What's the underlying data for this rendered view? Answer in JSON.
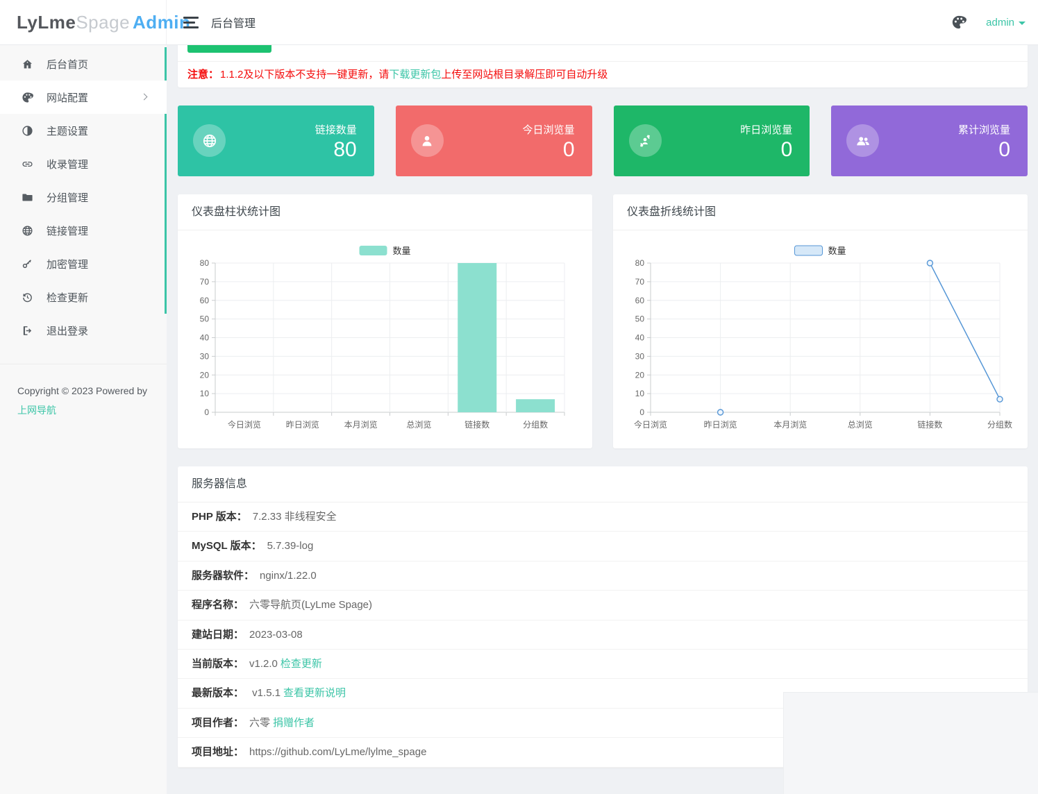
{
  "header": {
    "logo": {
      "part1": "LyLme",
      "part2": "Spage",
      "part3": "Admin"
    },
    "page_title": "后台管理",
    "user": "admin"
  },
  "sidebar": {
    "items": [
      {
        "label": "后台首页",
        "icon": "home-icon",
        "accent": true,
        "active": false,
        "has_children": false
      },
      {
        "label": "网站配置",
        "icon": "palette-icon",
        "accent": false,
        "active": true,
        "has_children": true
      },
      {
        "label": "主题设置",
        "icon": "contrast-icon",
        "accent": true,
        "active": false,
        "has_children": false
      },
      {
        "label": "收录管理",
        "icon": "link-icon",
        "accent": true,
        "active": false,
        "has_children": false
      },
      {
        "label": "分组管理",
        "icon": "folder-icon",
        "accent": true,
        "active": false,
        "has_children": false
      },
      {
        "label": "链接管理",
        "icon": "globe-icon",
        "accent": true,
        "active": false,
        "has_children": false
      },
      {
        "label": "加密管理",
        "icon": "key-icon",
        "accent": true,
        "active": false,
        "has_children": false
      },
      {
        "label": "检查更新",
        "icon": "history-icon",
        "accent": true,
        "active": false,
        "has_children": false
      },
      {
        "label": "退出登录",
        "icon": "logout-icon",
        "accent": false,
        "active": false,
        "has_children": false
      }
    ],
    "copyright": "Copyright © 2023 Powered by",
    "copyright_link": "上网导航"
  },
  "update_bar": {
    "button_color": "#1dc271",
    "notice_prefix": "注意：",
    "notice_text1": "1.1.2及以下版本不支持一键更新，请",
    "notice_link": "下载更新包",
    "notice_text2": "上传至网站根目录解压即可自动升级"
  },
  "stat_cards": [
    {
      "label": "链接数量",
      "value": "80",
      "color": "#2ec3a5",
      "icon": "globe-icon"
    },
    {
      "label": "今日浏览量",
      "value": "0",
      "color": "#f26b6b",
      "icon": "user-icon"
    },
    {
      "label": "昨日浏览量",
      "value": "0",
      "color": "#1eb768",
      "icon": "user-refresh-icon"
    },
    {
      "label": "累计浏览量",
      "value": "0",
      "color": "#9169d9",
      "icon": "users-icon"
    }
  ],
  "chart_data": [
    {
      "type": "bar",
      "title": "仪表盘柱状统计图",
      "legend": "数量",
      "legend_position": "top-center",
      "categories": [
        "今日浏览",
        "昨日浏览",
        "本月浏览",
        "总浏览",
        "链接数",
        "分组数"
      ],
      "values": [
        0,
        0,
        0,
        0,
        80,
        7
      ],
      "ylim": [
        0,
        80
      ],
      "y_interval": 10,
      "grid": true,
      "color": "#8ce0cf"
    },
    {
      "type": "line",
      "title": "仪表盘折线统计图",
      "legend": "数量",
      "legend_position": "top-center",
      "legend_fill": "#d6e8f8",
      "categories": [
        "今日浏览",
        "昨日浏览",
        "本月浏览",
        "总浏览",
        "链接数",
        "分组数"
      ],
      "values": [
        null,
        0,
        null,
        null,
        80,
        7
      ],
      "ylim": [
        0,
        80
      ],
      "y_interval": 10,
      "grid": true,
      "color": "#5596d6"
    }
  ],
  "server_info": {
    "title": "服务器信息",
    "rows": [
      {
        "label": "PHP 版本：",
        "value": "7.2.33 非线程安全",
        "link": ""
      },
      {
        "label": "MySQL 版本：",
        "value": "5.7.39-log",
        "link": ""
      },
      {
        "label": "服务器软件：",
        "value": "nginx/1.22.0",
        "link": ""
      },
      {
        "label": "程序名称：",
        "value": "六零导航页(LyLme Spage)",
        "link": ""
      },
      {
        "label": "建站日期：",
        "value": "2023-03-08",
        "link": ""
      },
      {
        "label": "当前版本：",
        "value": "v1.2.0",
        "link": "检查更新"
      },
      {
        "label": "最新版本：",
        "value": " v1.5.1",
        "link": "查看更新说明"
      },
      {
        "label": "项目作者：",
        "value": "六零",
        "link": "捐赠作者"
      },
      {
        "label": "项目地址：",
        "value": "https://github.com/LyLme/lylme_spage",
        "link": ""
      }
    ]
  },
  "colors": {
    "accent_teal": "#3cc5a7",
    "notice_red": "#f40b0b",
    "logo_blue": "#4eaef2",
    "bar_fill": "#8ce0cf",
    "line_blue": "#5596d6"
  }
}
